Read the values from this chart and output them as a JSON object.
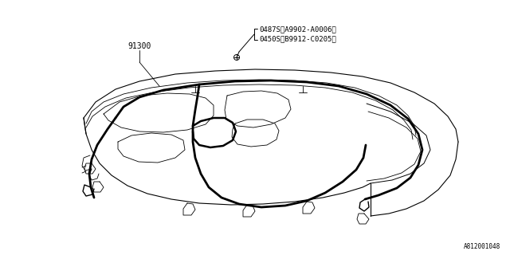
{
  "background_color": "#ffffff",
  "line_color": "#000000",
  "text_color": "#000000",
  "label_91300": "91300",
  "label_0487S": "0487S〈A9902-A0006〉",
  "label_0450S": "0450S〈B9912-C0205〉",
  "label_bottom_right": "A812001048",
  "fig_width": 6.4,
  "fig_height": 3.2,
  "dpi": 100
}
